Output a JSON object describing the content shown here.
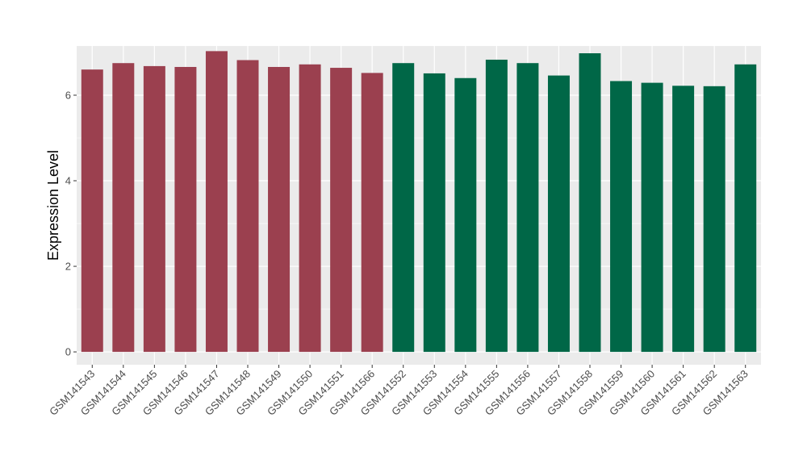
{
  "chart_data": {
    "type": "bar",
    "ylabel": "Expression Level",
    "xlabel": "",
    "ylim": [
      -0.3,
      7.15
    ],
    "yticks": [
      0,
      2,
      4,
      6
    ],
    "grid": true,
    "background": "#EBEBEB",
    "grid_color": "#FFFFFF",
    "categories": [
      "GSM141543",
      "GSM141544",
      "GSM141545",
      "GSM141546",
      "GSM141547",
      "GSM141548",
      "GSM141549",
      "GSM141550",
      "GSM141551",
      "GSM141566",
      "GSM141552",
      "GSM141553",
      "GSM141554",
      "GSM141555",
      "GSM141556",
      "GSM141557",
      "GSM141558",
      "GSM141559",
      "GSM141560",
      "GSM141561",
      "GSM141562",
      "GSM141563"
    ],
    "values": [
      6.6,
      6.75,
      6.68,
      6.66,
      7.03,
      6.82,
      6.66,
      6.72,
      6.64,
      6.52,
      6.75,
      6.51,
      6.4,
      6.83,
      6.75,
      6.46,
      6.98,
      6.33,
      6.29,
      6.22,
      6.21,
      6.72
    ],
    "colors": [
      "#9B404F",
      "#9B404F",
      "#9B404F",
      "#9B404F",
      "#9B404F",
      "#9B404F",
      "#9B404F",
      "#9B404F",
      "#9B404F",
      "#9B404F",
      "#006747",
      "#006747",
      "#006747",
      "#006747",
      "#006747",
      "#006747",
      "#006747",
      "#006747",
      "#006747",
      "#006747",
      "#006747",
      "#006747"
    ]
  }
}
